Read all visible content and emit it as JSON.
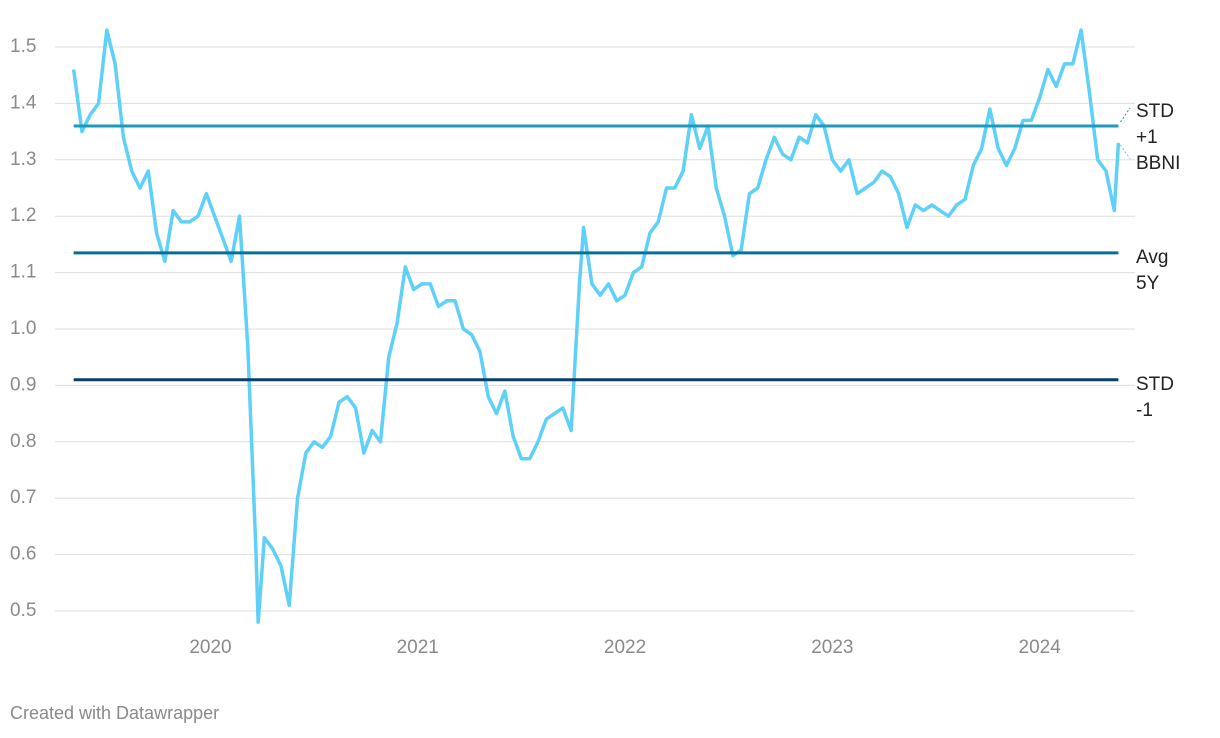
{
  "chart_data": {
    "type": "line",
    "credit": "Created with Datawrapper",
    "x": [
      2019.34,
      2019.38,
      2019.42,
      2019.46,
      2019.5,
      2019.54,
      2019.58,
      2019.62,
      2019.66,
      2019.7,
      2019.74,
      2019.78,
      2019.82,
      2019.86,
      2019.9,
      2019.94,
      2019.98,
      2020.02,
      2020.06,
      2020.1,
      2020.14,
      2020.18,
      2020.22,
      2020.23,
      2020.26,
      2020.3,
      2020.34,
      2020.38,
      2020.42,
      2020.46,
      2020.5,
      2020.54,
      2020.58,
      2020.62,
      2020.66,
      2020.7,
      2020.74,
      2020.78,
      2020.82,
      2020.86,
      2020.9,
      2020.94,
      2020.98,
      2021.02,
      2021.06,
      2021.1,
      2021.14,
      2021.18,
      2021.22,
      2021.26,
      2021.3,
      2021.34,
      2021.38,
      2021.42,
      2021.46,
      2021.5,
      2021.54,
      2021.58,
      2021.62,
      2021.66,
      2021.7,
      2021.74,
      2021.78,
      2021.8,
      2021.84,
      2021.88,
      2021.92,
      2021.96,
      2022.0,
      2022.04,
      2022.08,
      2022.12,
      2022.16,
      2022.2,
      2022.24,
      2022.28,
      2022.32,
      2022.36,
      2022.4,
      2022.44,
      2022.48,
      2022.52,
      2022.56,
      2022.6,
      2022.64,
      2022.68,
      2022.72,
      2022.76,
      2022.8,
      2022.84,
      2022.88,
      2022.92,
      2022.96,
      2023.0,
      2023.04,
      2023.08,
      2023.12,
      2023.16,
      2023.2,
      2023.24,
      2023.28,
      2023.32,
      2023.36,
      2023.4,
      2023.44,
      2023.48,
      2023.52,
      2023.56,
      2023.6,
      2023.64,
      2023.68,
      2023.72,
      2023.76,
      2023.8,
      2023.84,
      2023.88,
      2023.92,
      2023.96,
      2024.0,
      2024.04,
      2024.08,
      2024.12,
      2024.16,
      2024.2,
      2024.24,
      2024.28,
      2024.32,
      2024.36,
      2024.38
    ],
    "series": [
      {
        "name": "BBNI",
        "color": "#5fd0f8",
        "values": [
          1.46,
          1.35,
          1.38,
          1.4,
          1.53,
          1.47,
          1.34,
          1.28,
          1.25,
          1.28,
          1.17,
          1.12,
          1.21,
          1.19,
          1.19,
          1.2,
          1.24,
          1.2,
          1.16,
          1.12,
          1.2,
          0.97,
          0.6,
          0.48,
          0.63,
          0.61,
          0.58,
          0.51,
          0.7,
          0.78,
          0.8,
          0.79,
          0.81,
          0.87,
          0.88,
          0.86,
          0.78,
          0.82,
          0.8,
          0.95,
          1.01,
          1.11,
          1.07,
          1.08,
          1.08,
          1.04,
          1.05,
          1.05,
          1.0,
          0.99,
          0.96,
          0.88,
          0.85,
          0.89,
          0.81,
          0.77,
          0.77,
          0.8,
          0.84,
          0.85,
          0.86,
          0.82,
          1.08,
          1.18,
          1.08,
          1.06,
          1.08,
          1.05,
          1.06,
          1.1,
          1.11,
          1.17,
          1.19,
          1.25,
          1.25,
          1.28,
          1.38,
          1.32,
          1.36,
          1.25,
          1.2,
          1.13,
          1.14,
          1.24,
          1.25,
          1.3,
          1.34,
          1.31,
          1.3,
          1.34,
          1.33,
          1.38,
          1.36,
          1.3,
          1.28,
          1.3,
          1.24,
          1.25,
          1.26,
          1.28,
          1.27,
          1.24,
          1.18,
          1.22,
          1.21,
          1.22,
          1.21,
          1.2,
          1.22,
          1.23,
          1.29,
          1.32,
          1.39,
          1.32,
          1.29,
          1.32,
          1.37,
          1.37,
          1.41,
          1.46,
          1.43,
          1.47,
          1.47,
          1.53,
          1.42,
          1.3,
          1.28,
          1.21,
          1.33
        ]
      }
    ],
    "reference_lines": [
      {
        "label": "STD +1",
        "value": 1.36,
        "color": "#1c9bbd"
      },
      {
        "label": "Avg 5Y",
        "value": 1.135,
        "color": "#076f95"
      },
      {
        "label": "STD -1",
        "value": 0.91,
        "color": "#0c3d66"
      }
    ],
    "xlim": [
      2019.25,
      2024.46
    ],
    "xticks": [
      2020,
      2021,
      2022,
      2023,
      2024
    ],
    "ylim": [
      0.47,
      1.55
    ],
    "yticks": [
      0.5,
      0.6,
      0.7,
      0.8,
      0.9,
      {
        "value": 1,
        "label": "1.0"
      },
      1.1,
      1.2,
      1.3,
      1.4,
      1.5
    ],
    "grid": true
  }
}
